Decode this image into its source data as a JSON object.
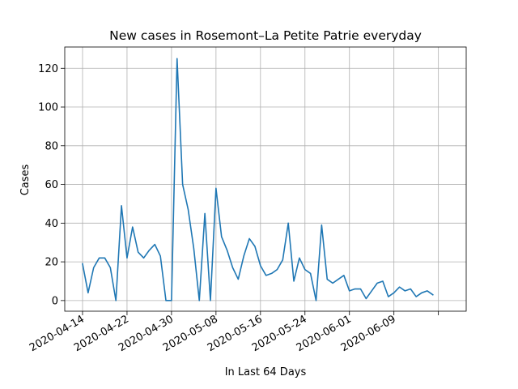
{
  "chart_data": {
    "type": "line",
    "title": "New cases in Rosemont–La Petite Patrie everyday",
    "xlabel": "In Last 64 Days",
    "ylabel": "Cases",
    "x_start": "2020-04-14",
    "x_tick_labels": [
      "2020-04-14",
      "2020-04-22",
      "2020-04-30",
      "2020-05-08",
      "2020-05-16",
      "2020-05-24",
      "2020-06-01",
      "2020-06-09"
    ],
    "y_ticks": [
      0,
      20,
      40,
      60,
      80,
      100,
      120
    ],
    "xlim": [
      "2020-04-14",
      "2020-06-22"
    ],
    "ylim": [
      0,
      130
    ],
    "grid": true,
    "color": "#1f77b4",
    "series": [
      {
        "name": "",
        "x": [
          "2020-04-14",
          "2020-04-15",
          "2020-04-16",
          "2020-04-17",
          "2020-04-18",
          "2020-04-19",
          "2020-04-20",
          "2020-04-21",
          "2020-04-22",
          "2020-04-23",
          "2020-04-24",
          "2020-04-25",
          "2020-04-26",
          "2020-04-27",
          "2020-04-28",
          "2020-04-29",
          "2020-04-30",
          "2020-05-01",
          "2020-05-02",
          "2020-05-03",
          "2020-05-04",
          "2020-05-05",
          "2020-05-06",
          "2020-05-07",
          "2020-05-08",
          "2020-05-09",
          "2020-05-10",
          "2020-05-11",
          "2020-05-12",
          "2020-05-13",
          "2020-05-14",
          "2020-05-15",
          "2020-05-16",
          "2020-05-17",
          "2020-05-18",
          "2020-05-19",
          "2020-05-20",
          "2020-05-21",
          "2020-05-22",
          "2020-05-23",
          "2020-05-24",
          "2020-05-25",
          "2020-05-26",
          "2020-05-27",
          "2020-05-28",
          "2020-05-29",
          "2020-05-30",
          "2020-05-31",
          "2020-06-01",
          "2020-06-02",
          "2020-06-03",
          "2020-06-04",
          "2020-06-05",
          "2020-06-06",
          "2020-06-07",
          "2020-06-08",
          "2020-06-09",
          "2020-06-10",
          "2020-06-11",
          "2020-06-12",
          "2020-06-13",
          "2020-06-14",
          "2020-06-15",
          "2020-06-16"
        ],
        "y": [
          19,
          4,
          17,
          22,
          22,
          17,
          0,
          49,
          22,
          38,
          25,
          22,
          26,
          29,
          23,
          0,
          0,
          125,
          60,
          47,
          27,
          0,
          45,
          0,
          58,
          33,
          26,
          17,
          11,
          23,
          32,
          28,
          18,
          13,
          14,
          16,
          21,
          40,
          10,
          22,
          16,
          14,
          0,
          39,
          11,
          9,
          11,
          13,
          5,
          6,
          6,
          1,
          5,
          9,
          10,
          2,
          4,
          7,
          5,
          6,
          2,
          4,
          5,
          3
        ]
      }
    ]
  }
}
